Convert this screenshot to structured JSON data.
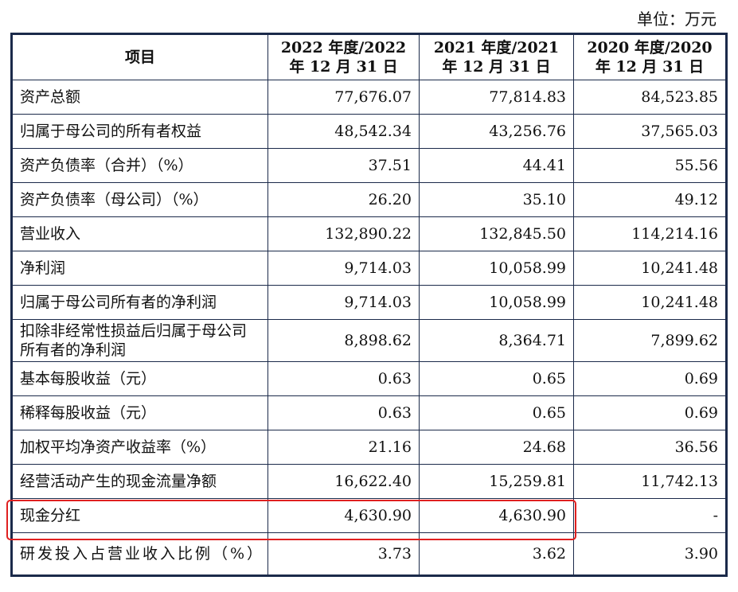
{
  "unit": "单位：万元",
  "headers": [
    "项目",
    "2022 年度/2022 年 12 月 31 日",
    "2021 年度/2021 年 12 月 31 日",
    "2020 年度/2020 年 12 月 31 日"
  ],
  "rows": [
    {
      "label": "资产总额",
      "v": [
        "77,676.07",
        "77,814.83",
        "84,523.85"
      ]
    },
    {
      "label": "归属于母公司的所有者权益",
      "v": [
        "48,542.34",
        "43,256.76",
        "37,565.03"
      ]
    },
    {
      "label": "资产负债率（合并）（%）",
      "v": [
        "37.51",
        "44.41",
        "55.56"
      ]
    },
    {
      "label": "资产负债率（母公司）（%）",
      "v": [
        "26.20",
        "35.10",
        "49.12"
      ]
    },
    {
      "label": "营业收入",
      "v": [
        "132,890.22",
        "132,845.50",
        "114,214.16"
      ]
    },
    {
      "label": "净利润",
      "v": [
        "9,714.03",
        "10,058.99",
        "10,241.48"
      ]
    },
    {
      "label": "归属于母公司所有者的净利润",
      "v": [
        "9,714.03",
        "10,058.99",
        "10,241.48"
      ]
    },
    {
      "label": "扣除非经常性损益后归属于母公司所有者的净利润",
      "v": [
        "8,898.62",
        "8,364.71",
        "7,899.62"
      ]
    },
    {
      "label": "基本每股收益（元）",
      "v": [
        "0.63",
        "0.65",
        "0.69"
      ]
    },
    {
      "label": "稀释每股收益（元）",
      "v": [
        "0.63",
        "0.65",
        "0.69"
      ]
    },
    {
      "label": "加权平均净资产收益率（%）",
      "v": [
        "21.16",
        "24.68",
        "36.56"
      ]
    },
    {
      "label": "经营活动产生的现金流量净额",
      "v": [
        "16,622.40",
        "15,259.81",
        "11,742.13"
      ]
    },
    {
      "label": "现金分红",
      "v": [
        "4,630.90",
        "4,630.90",
        "-"
      ]
    },
    {
      "label": "研发投入占营业收入比例（%）",
      "v": [
        "3.73",
        "3.62",
        "3.90"
      ]
    }
  ],
  "highlight_color": "#e02020"
}
